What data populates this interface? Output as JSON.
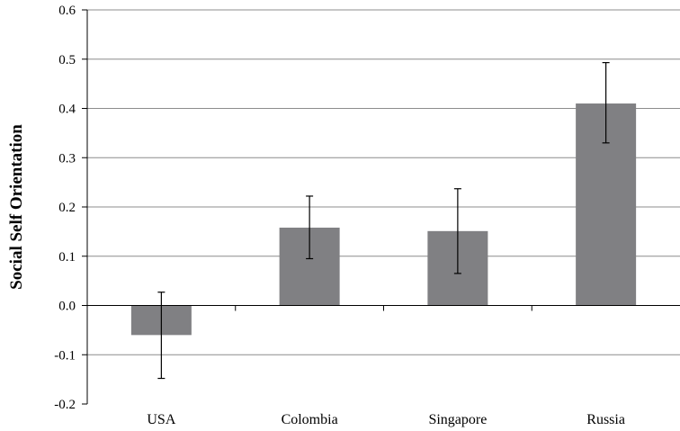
{
  "chart_data": {
    "type": "bar",
    "categories": [
      "USA",
      "Colombia",
      "Singapore",
      "Russia"
    ],
    "values": [
      -0.06,
      0.158,
      0.151,
      0.41
    ],
    "error_low": [
      -0.148,
      0.095,
      0.065,
      0.33
    ],
    "error_high": [
      0.027,
      0.222,
      0.237,
      0.493
    ],
    "title": "",
    "xlabel": "",
    "ylabel": "Social Self Orientation",
    "ylim": [
      -0.2,
      0.6
    ],
    "yticks": [
      -0.2,
      -0.1,
      0.0,
      0.1,
      0.2,
      0.3,
      0.4,
      0.5,
      0.6
    ],
    "ytick_labels": [
      "-0.2",
      "-0.1",
      "0.0",
      "0.1",
      "0.2",
      "0.3",
      "0.4",
      "0.5",
      "0.6"
    ],
    "grid": true,
    "legend": "none",
    "colors": {
      "bar": "#808083",
      "grid": "#8c8c8c",
      "axis": "#000000",
      "error_bar": "#000000"
    }
  }
}
